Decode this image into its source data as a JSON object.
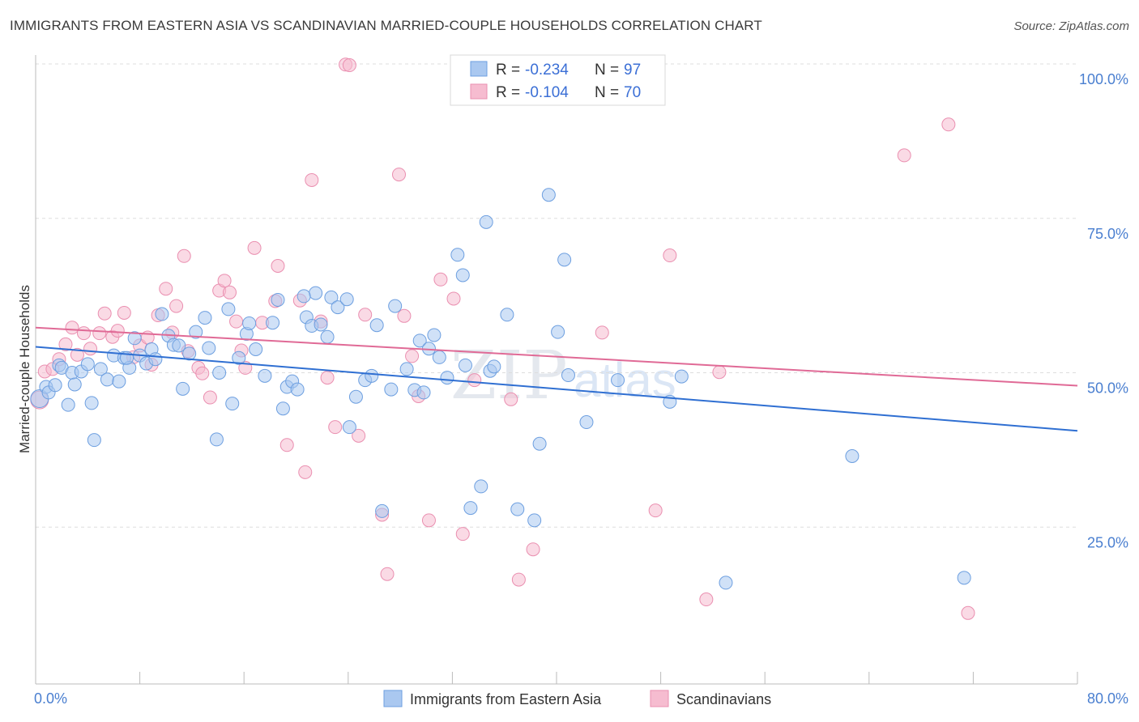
{
  "header": {
    "title": "IMMIGRANTS FROM EASTERN ASIA VS SCANDINAVIAN MARRIED-COUPLE HOUSEHOLDS CORRELATION CHART",
    "source": "Source: ZipAtlas.com"
  },
  "watermark": {
    "zip": "ZIP",
    "atlas": "atlas"
  },
  "legend": {
    "r_label": "R = ",
    "n_label": "N = ",
    "series1": {
      "r": "-0.234",
      "n": "97"
    },
    "series2": {
      "r": "-0.104",
      "n": "70"
    }
  },
  "colors": {
    "series1_fill": "#aac8f0",
    "series1_stroke": "#6d9fe0",
    "series1_line": "#2f6fd2",
    "series2_fill": "#f6bcd0",
    "series2_stroke": "#ea8fb0",
    "series2_line": "#e06a96",
    "grid": "#dddddd",
    "tick_text": "#4a7fd0"
  },
  "chart_data": {
    "type": "scatter",
    "title": "IMMIGRANTS FROM EASTERN ASIA VS SCANDINAVIAN MARRIED-COUPLE HOUSEHOLDS CORRELATION CHART",
    "xlabel": "",
    "ylabel": "Married-couple Households",
    "xlim": [
      0,
      80
    ],
    "ylim": [
      0,
      105
    ],
    "x_tick_labels": [
      "0.0%",
      "80.0%"
    ],
    "y_ticks": [
      25,
      50,
      75,
      100
    ],
    "y_tick_labels": [
      "25.0%",
      "50.0%",
      "75.0%",
      "100.0%"
    ],
    "grid": true,
    "legend_position": "top-center",
    "series": [
      {
        "name": "Immigrants from Eastern Asia",
        "r": -0.234,
        "n": 97,
        "trend": {
          "x": [
            0,
            80
          ],
          "y": [
            54.2,
            40.6
          ]
        },
        "points": [
          [
            0.3,
            45.8
          ],
          [
            0.8,
            47.7
          ],
          [
            1.0,
            46.8
          ],
          [
            1.5,
            48.0
          ],
          [
            1.8,
            51.2
          ],
          [
            2.0,
            50.8
          ],
          [
            2.5,
            44.8
          ],
          [
            2.8,
            50.0
          ],
          [
            3.0,
            48.1
          ],
          [
            3.5,
            50.2
          ],
          [
            4.0,
            51.4
          ],
          [
            4.3,
            45.1
          ],
          [
            4.5,
            39.1
          ],
          [
            5.0,
            50.6
          ],
          [
            5.5,
            48.9
          ],
          [
            6.0,
            52.8
          ],
          [
            6.4,
            48.6
          ],
          [
            6.8,
            52.4
          ],
          [
            7.2,
            50.8
          ],
          [
            7.6,
            55.6
          ],
          [
            8.0,
            52.8
          ],
          [
            8.5,
            51.5
          ],
          [
            8.9,
            53.8
          ],
          [
            9.2,
            52.2
          ],
          [
            9.7,
            59.5
          ],
          [
            10.2,
            56.0
          ],
          [
            10.6,
            54.5
          ],
          [
            11.0,
            54.4
          ],
          [
            11.3,
            47.4
          ],
          [
            11.8,
            53.1
          ],
          [
            12.3,
            56.6
          ],
          [
            13.0,
            58.9
          ],
          [
            13.3,
            54.0
          ],
          [
            13.9,
            39.2
          ],
          [
            14.1,
            50.0
          ],
          [
            14.8,
            60.3
          ],
          [
            15.1,
            45.0
          ],
          [
            15.6,
            52.4
          ],
          [
            16.2,
            56.3
          ],
          [
            16.4,
            58.0
          ],
          [
            16.9,
            53.8
          ],
          [
            17.6,
            49.5
          ],
          [
            18.2,
            58.1
          ],
          [
            18.6,
            61.8
          ],
          [
            19.0,
            44.2
          ],
          [
            19.3,
            47.7
          ],
          [
            19.7,
            48.6
          ],
          [
            20.1,
            47.3
          ],
          [
            20.8,
            59.0
          ],
          [
            21.2,
            57.6
          ],
          [
            21.5,
            62.9
          ],
          [
            21.9,
            57.8
          ],
          [
            22.4,
            55.8
          ],
          [
            22.7,
            62.2
          ],
          [
            23.2,
            60.6
          ],
          [
            23.9,
            61.9
          ],
          [
            24.1,
            41.2
          ],
          [
            24.6,
            46.1
          ],
          [
            25.3,
            48.8
          ],
          [
            25.8,
            49.5
          ],
          [
            26.2,
            57.7
          ],
          [
            26.6,
            27.6
          ],
          [
            27.3,
            47.3
          ],
          [
            27.6,
            60.8
          ],
          [
            28.5,
            50.6
          ],
          [
            29.1,
            47.2
          ],
          [
            29.5,
            55.2
          ],
          [
            29.8,
            46.8
          ],
          [
            30.2,
            53.9
          ],
          [
            30.6,
            56.1
          ],
          [
            31.0,
            52.5
          ],
          [
            31.6,
            49.2
          ],
          [
            32.4,
            69.1
          ],
          [
            33.0,
            51.2
          ],
          [
            32.8,
            65.8
          ],
          [
            33.4,
            28.1
          ],
          [
            34.2,
            31.6
          ],
          [
            34.9,
            50.3
          ],
          [
            35.2,
            51.0
          ],
          [
            36.2,
            59.4
          ],
          [
            34.6,
            74.4
          ],
          [
            37.0,
            27.9
          ],
          [
            38.3,
            26.1
          ],
          [
            38.7,
            38.5
          ],
          [
            39.4,
            78.8
          ],
          [
            40.1,
            56.6
          ],
          [
            40.6,
            68.3
          ],
          [
            40.9,
            49.6
          ],
          [
            42.3,
            42.0
          ],
          [
            44.7,
            48.8
          ],
          [
            48.7,
            45.3
          ],
          [
            49.6,
            49.4
          ],
          [
            53.0,
            16.0
          ],
          [
            62.7,
            36.5
          ],
          [
            71.3,
            16.8
          ],
          [
            7.0,
            52.4
          ],
          [
            20.6,
            62.4
          ]
        ]
      },
      {
        "name": "Scandinavians",
        "r": -0.104,
        "n": 70,
        "trend": {
          "x": [
            0,
            80
          ],
          "y": [
            57.3,
            47.9
          ]
        },
        "points": [
          [
            0.3,
            45.6
          ],
          [
            0.7,
            50.2
          ],
          [
            1.3,
            50.6
          ],
          [
            1.8,
            52.2
          ],
          [
            2.3,
            54.6
          ],
          [
            2.8,
            57.3
          ],
          [
            3.2,
            52.9
          ],
          [
            3.7,
            56.4
          ],
          [
            4.2,
            53.9
          ],
          [
            4.9,
            56.4
          ],
          [
            5.3,
            59.6
          ],
          [
            5.9,
            55.8
          ],
          [
            6.3,
            56.8
          ],
          [
            6.8,
            59.7
          ],
          [
            7.5,
            52.5
          ],
          [
            8.0,
            54.4
          ],
          [
            8.6,
            55.7
          ],
          [
            8.9,
            51.3
          ],
          [
            9.4,
            59.3
          ],
          [
            10.0,
            63.6
          ],
          [
            10.5,
            56.5
          ],
          [
            10.8,
            60.8
          ],
          [
            11.4,
            68.9
          ],
          [
            11.7,
            53.5
          ],
          [
            12.5,
            50.8
          ],
          [
            12.8,
            49.9
          ],
          [
            13.4,
            46.0
          ],
          [
            14.1,
            63.3
          ],
          [
            14.5,
            64.9
          ],
          [
            14.9,
            63.0
          ],
          [
            15.4,
            58.3
          ],
          [
            15.8,
            53.6
          ],
          [
            16.1,
            50.8
          ],
          [
            16.8,
            70.2
          ],
          [
            17.4,
            58.1
          ],
          [
            18.4,
            61.6
          ],
          [
            18.6,
            67.3
          ],
          [
            19.3,
            38.3
          ],
          [
            20.3,
            61.7
          ],
          [
            20.7,
            33.9
          ],
          [
            21.2,
            81.2
          ],
          [
            21.9,
            58.3
          ],
          [
            22.4,
            49.2
          ],
          [
            23.0,
            41.2
          ],
          [
            23.8,
            99.9
          ],
          [
            24.1,
            99.8
          ],
          [
            24.8,
            39.8
          ],
          [
            25.3,
            59.4
          ],
          [
            26.6,
            27.0
          ],
          [
            27.0,
            17.4
          ],
          [
            27.9,
            82.1
          ],
          [
            28.3,
            59.2
          ],
          [
            28.9,
            52.7
          ],
          [
            29.4,
            46.2
          ],
          [
            30.2,
            26.1
          ],
          [
            31.1,
            65.1
          ],
          [
            32.1,
            62.0
          ],
          [
            32.8,
            23.9
          ],
          [
            33.7,
            48.8
          ],
          [
            36.5,
            45.7
          ],
          [
            37.1,
            16.5
          ],
          [
            38.2,
            21.4
          ],
          [
            43.5,
            56.5
          ],
          [
            47.6,
            27.7
          ],
          [
            48.7,
            69.0
          ],
          [
            51.5,
            13.3
          ],
          [
            52.5,
            50.1
          ],
          [
            66.7,
            85.2
          ],
          [
            70.1,
            90.2
          ],
          [
            71.6,
            11.1
          ]
        ]
      }
    ]
  }
}
